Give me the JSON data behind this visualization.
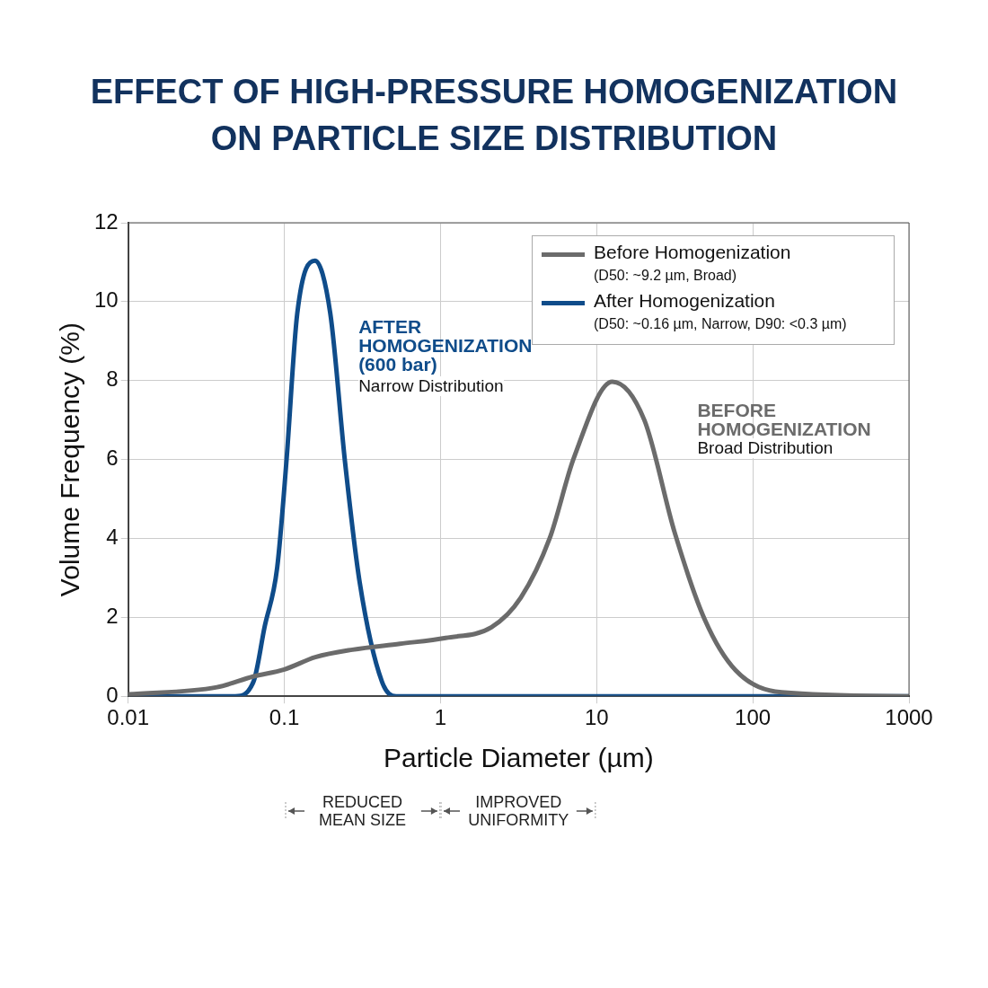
{
  "chart_data": {
    "type": "line",
    "title": "EFFECT OF HIGH-PRESSURE HOMOGENIZATION\nON PARTICLE SIZE DISTRIBUTION",
    "xlabel": "Particle Diameter (µm)",
    "ylabel": "Volume Frequency (%)",
    "log": "x",
    "xlim": [
      0.01,
      1000
    ],
    "xticks": [
      0.01,
      0.1,
      1,
      10,
      100,
      1000
    ],
    "ylim": [
      0,
      12
    ],
    "yticks": [
      0,
      2,
      4,
      6,
      8,
      10,
      12
    ],
    "grid": true,
    "legend": "top right",
    "marker": "none",
    "line_style": "solid",
    "series": [
      {
        "name": "Before Homogenization\n(D50: ~9.2 µm, Broad)",
        "color": "#6b6b6b",
        "x": [
          0.01,
          0.037,
          0.063,
          0.1,
          0.158,
          0.273,
          0.55,
          1.08,
          2.12,
          3.27,
          5.0,
          7.16,
          12.6,
          20.2,
          31.6,
          49.3,
          77.6,
          153,
          1000
        ],
        "values": [
          0.05,
          0.23,
          0.5,
          0.68,
          0.99,
          1.18,
          1.33,
          1.48,
          1.75,
          2.5,
          4.0,
          6.05,
          7.97,
          7.0,
          4.15,
          1.94,
          0.66,
          0.1,
          0
        ]
      },
      {
        "name": "After Homogenization\n(D50: ~0.16 µm, Narrow, D90: <0.3 µm)",
        "color": "#0f4c8a",
        "x": [
          0.01,
          0.0485,
          0.0636,
          0.0747,
          0.09,
          0.103,
          0.121,
          0.157,
          0.197,
          0.245,
          0.304,
          0.421,
          0.52,
          1000
        ],
        "values": [
          0,
          0,
          0.38,
          1.75,
          3.26,
          5.92,
          9.7,
          11.04,
          9.7,
          5.92,
          2.88,
          0.38,
          0,
          0
        ]
      }
    ],
    "annotations": [
      "AFTER\nHOMOGENIZATION\n(600 bar)",
      "Narrow Distribution",
      "BEFORE\nHOMOGENIZATION",
      "Broad Distribution",
      "REDUCED\nMEAN SIZE",
      "IMPROVED\nUNIFORMITY"
    ]
  }
}
